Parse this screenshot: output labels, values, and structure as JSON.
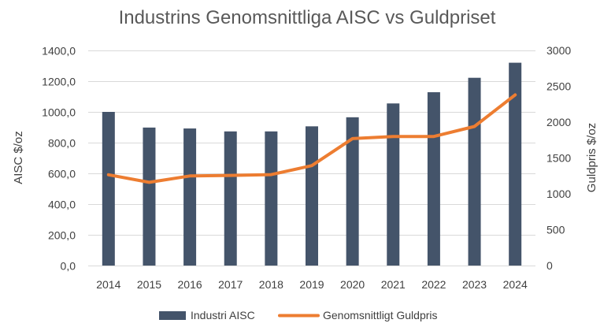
{
  "chart_data": {
    "type": "bar+line",
    "title": "Industrins Genomsnittliga AISC vs Guldpriset",
    "categories": [
      "2014",
      "2015",
      "2016",
      "2017",
      "2018",
      "2019",
      "2020",
      "2021",
      "2022",
      "2023",
      "2024"
    ],
    "series": [
      {
        "name": "Industri AISC",
        "type": "bar",
        "axis": "left",
        "color": "#44546a",
        "values": [
          1000,
          898,
          892,
          873,
          873,
          906,
          965,
          1055,
          1128,
          1222,
          1320
        ]
      },
      {
        "name": "Genomsnittligt Guldpris",
        "type": "line",
        "axis": "right",
        "color": "#ed7d31",
        "values": [
          1266,
          1160,
          1250,
          1257,
          1268,
          1393,
          1770,
          1800,
          1800,
          1940,
          2380
        ]
      }
    ],
    "ylabel": "AISC $/oz",
    "y2label": "Guldpris $/oz",
    "ylim": [
      0,
      1400
    ],
    "y2lim": [
      0,
      3000
    ],
    "yticks": [
      "0,0",
      "200,0",
      "400,0",
      "600,0",
      "800,0",
      "1000,0",
      "1200,0",
      "1400,0"
    ],
    "y2ticks": [
      "0",
      "500",
      "1000",
      "1500",
      "2000",
      "2500",
      "3000"
    ],
    "grid": true,
    "legend_position": "bottom"
  }
}
